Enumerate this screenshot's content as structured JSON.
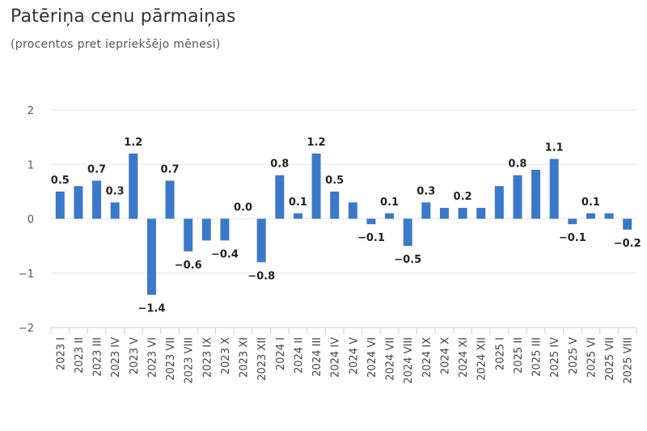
{
  "title": "Patēriņa cenu pārmaiņas",
  "subtitle": "(procentos pret iepriekšējo mēnesi)",
  "colors": {
    "bar": "#3a78c9",
    "grid": "#e6e6e6",
    "axis": "#cccccc"
  },
  "chart_data": {
    "type": "bar",
    "title": "Patēriņa cenu pārmaiņas",
    "subtitle": "(procentos pret iepriekšējo mēnesi)",
    "xlabel": "",
    "ylabel": "",
    "ylim": [
      -2,
      2
    ],
    "yticks": [
      -2,
      -1,
      0,
      1,
      2
    ],
    "grid": true,
    "categories": [
      "2023 I",
      "2023 II",
      "2023 III",
      "2023 IV",
      "2023 V",
      "2023 VI",
      "2023 VII",
      "2023 VIII",
      "2023 IX",
      "2023 X",
      "2023 XI",
      "2023 XII",
      "2024 I",
      "2024 II",
      "2024 III",
      "2024 IV",
      "2024 V",
      "2024 VI",
      "2024 VII",
      "2024 VIII",
      "2024 IX",
      "2024 X",
      "2024 XI",
      "2024 XII",
      "2025 I",
      "2025 II",
      "2025 III",
      "2025 IV",
      "2025 V",
      "2025 VI",
      "2025 VII",
      "2025 VIII"
    ],
    "values": [
      0.5,
      0.6,
      0.7,
      0.3,
      1.2,
      -1.4,
      0.7,
      -0.6,
      -0.4,
      -0.4,
      0.0,
      -0.8,
      0.8,
      0.1,
      1.2,
      0.5,
      0.3,
      -0.1,
      0.1,
      -0.5,
      0.3,
      0.2,
      0.2,
      0.2,
      0.6,
      0.8,
      0.9,
      1.1,
      -0.1,
      0.1,
      0.1,
      -0.2
    ],
    "data_labels": [
      "0.5",
      "",
      "0.7",
      "0.3",
      "1.2",
      "−1.4",
      "0.7",
      "−0.6",
      "",
      "−0.4",
      "0.0",
      "−0.8",
      "0.8",
      "0.1",
      "1.2",
      "0.5",
      "",
      "−0.1",
      "0.1",
      "−0.5",
      "0.3",
      "",
      "0.2",
      "",
      "",
      "0.8",
      "",
      "1.1",
      "−0.1",
      "0.1",
      "",
      "−0.2"
    ]
  }
}
